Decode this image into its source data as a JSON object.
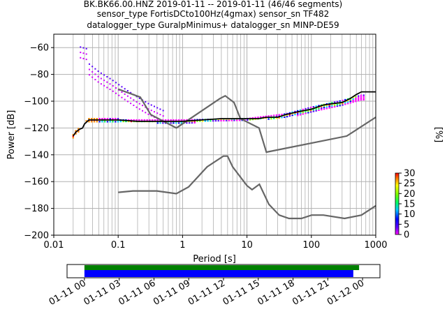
{
  "chart_data": {
    "type": "heatmap",
    "title_lines": [
      "BK.BK66.00.HNZ   2019-01-11 -- 2019-01-11  (46/46 segments)",
      "sensor_type FortisDCto100Hz(4gmax) sensor_sn TF482",
      "datalogger_type GuralpMinimus+ datalogger_sn MINP-DE59"
    ],
    "xlabel": "Period [s]",
    "ylabel": "Power [dB]",
    "xscale": "log",
    "xlim": [
      0.01,
      1000
    ],
    "ylim": [
      -200,
      -50
    ],
    "x_ticks": [
      0.01,
      0.1,
      1,
      10,
      100,
      1000
    ],
    "x_tick_labels": [
      "0.01",
      "0.1",
      "1",
      "10",
      "100",
      "1000"
    ],
    "y_ticks": [
      -200,
      -180,
      -160,
      -140,
      -120,
      -100,
      -80,
      -60
    ],
    "y_tick_labels": [
      "−200",
      "−180",
      "−160",
      "−140",
      "−120",
      "−100",
      "−80",
      "−60"
    ],
    "grid": true,
    "colorbar": {
      "label": "[%]",
      "min": 0,
      "max": 30,
      "ticks": [
        0,
        5,
        10,
        15,
        20,
        25,
        30
      ],
      "tick_labels": [
        "0",
        "5",
        "10",
        "15",
        "20",
        "25",
        "30"
      ],
      "colors": [
        "#ff00ff",
        "#5a00ff",
        "#0000ff",
        "#00c8ff",
        "#00ff64",
        "#78ff00",
        "#ffff00",
        "#ff8c00",
        "#ff0000"
      ]
    },
    "noise_model_high": [
      [
        0.1,
        -91
      ],
      [
        0.22,
        -97
      ],
      [
        0.32,
        -110
      ],
      [
        0.8,
        -120
      ],
      [
        3.8,
        -98
      ],
      [
        4.6,
        -96
      ],
      [
        6.3,
        -101
      ],
      [
        7.9,
        -113
      ],
      [
        15.4,
        -120
      ],
      [
        20,
        -138
      ],
      [
        354.8,
        -126
      ],
      [
        1000,
        -112
      ]
    ],
    "noise_model_low": [
      [
        0.1,
        -168
      ],
      [
        0.17,
        -167
      ],
      [
        0.4,
        -167
      ],
      [
        0.8,
        -169
      ],
      [
        1.24,
        -164
      ],
      [
        2.4,
        -149
      ],
      [
        4.3,
        -141
      ],
      [
        5,
        -141
      ],
      [
        6,
        -149
      ],
      [
        10,
        -163
      ],
      [
        12,
        -166
      ],
      [
        15.6,
        -162
      ],
      [
        21.9,
        -177
      ],
      [
        31.6,
        -185
      ],
      [
        45,
        -187.5
      ],
      [
        70,
        -187.5
      ],
      [
        101,
        -185
      ],
      [
        154,
        -185
      ],
      [
        328,
        -187.5
      ],
      [
        600,
        -185
      ],
      [
        1000,
        -178
      ]
    ],
    "mean_psd": [
      [
        0.02,
        -126
      ],
      [
        0.022,
        -123
      ],
      [
        0.025,
        -121
      ],
      [
        0.028,
        -120
      ],
      [
        0.03,
        -117
      ],
      [
        0.035,
        -114
      ],
      [
        0.05,
        -114
      ],
      [
        0.1,
        -114
      ],
      [
        0.2,
        -115
      ],
      [
        0.5,
        -115
      ],
      [
        1,
        -115
      ],
      [
        2,
        -114
      ],
      [
        4,
        -113
      ],
      [
        10,
        -113
      ],
      [
        15,
        -113
      ],
      [
        20,
        -112
      ],
      [
        30,
        -112
      ],
      [
        40,
        -110
      ],
      [
        60,
        -108
      ],
      [
        100,
        -106
      ],
      [
        150,
        -103
      ],
      [
        200,
        -102
      ],
      [
        300,
        -101
      ],
      [
        400,
        -98
      ],
      [
        500,
        -95
      ],
      [
        600,
        -93
      ],
      [
        1000,
        -93
      ]
    ],
    "spurious_branch": [
      [
        0.033,
        -79
      ],
      [
        0.05,
        -86
      ],
      [
        0.08,
        -92
      ],
      [
        0.12,
        -98
      ],
      [
        0.2,
        -105
      ],
      [
        0.3,
        -110
      ],
      [
        0.5,
        -115
      ]
    ],
    "upper_band": [
      [
        0.1,
        -113.5
      ],
      [
        1,
        -113.5
      ],
      [
        10,
        -112.5
      ],
      [
        40,
        -109
      ],
      [
        100,
        -104
      ],
      [
        300,
        -99
      ],
      [
        600,
        -95
      ]
    ],
    "lower_band": [
      [
        0.025,
        -115
      ],
      [
        0.1,
        -115.5
      ],
      [
        1,
        -116
      ],
      [
        10,
        -114
      ],
      [
        40,
        -112
      ],
      [
        100,
        -108
      ],
      [
        300,
        -103
      ],
      [
        600,
        -99
      ]
    ],
    "data_coverage": {
      "time_tick_labels": [
        "01-11 00",
        "01-11 03",
        "01-11 06",
        "01-11 09",
        "01-11 12",
        "01-11 15",
        "01-11 18",
        "01-11 21",
        "01-12 00"
      ],
      "time_range_hours": [
        -1.5,
        25.5
      ],
      "green_bar_hours": [
        0,
        23.7
      ],
      "blue_bar_hours": [
        0,
        23.2
      ],
      "colors": {
        "green": "#008000",
        "blue": "#0000ff"
      }
    }
  }
}
